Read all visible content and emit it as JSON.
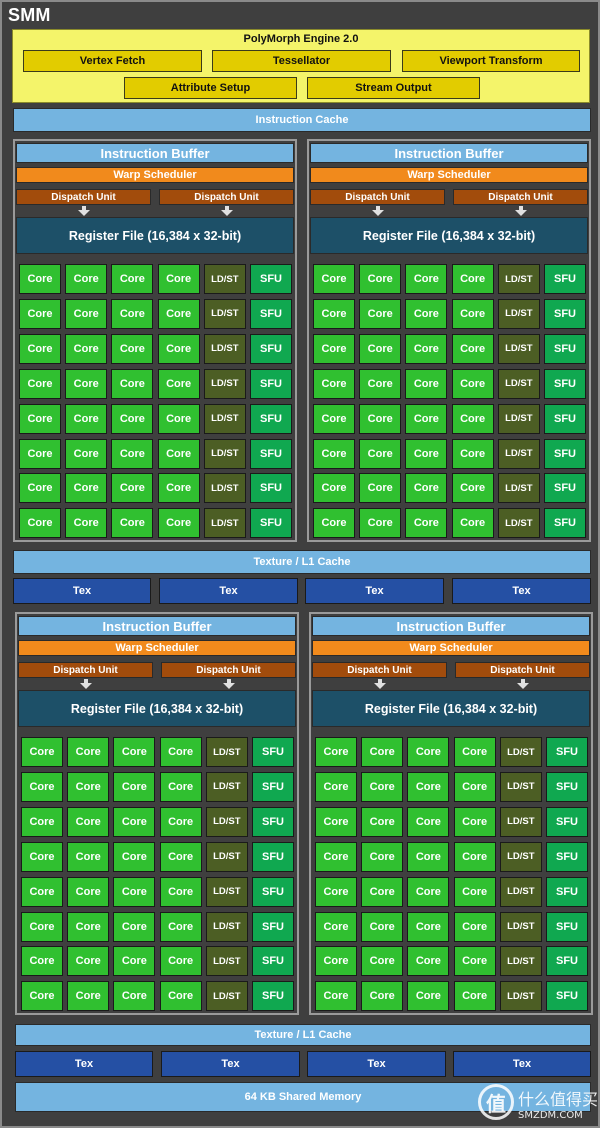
{
  "title": "SMM",
  "polymorph": {
    "title": "PolyMorph Engine 2.0",
    "row1": [
      "Vertex Fetch",
      "Tessellator",
      "Viewport Transform"
    ],
    "row2": [
      "Attribute Setup",
      "Stream Output"
    ]
  },
  "instruction_cache": "Instruction Cache",
  "processing_block": {
    "instruction_buffer": "Instruction Buffer",
    "warp_scheduler": "Warp Scheduler",
    "dispatch_units": [
      "Dispatch Unit",
      "Dispatch Unit"
    ],
    "register_file": "Register File (16,384 x 32-bit)",
    "row_units": [
      "Core",
      "Core",
      "Core",
      "Core",
      "LD/ST",
      "SFU"
    ],
    "rows": 8
  },
  "texture_l1_cache": "Texture / L1 Cache",
  "tex_units": [
    "Tex",
    "Tex",
    "Tex",
    "Tex"
  ],
  "shared_memory": "64 KB Shared Memory",
  "watermark": {
    "logo_glyph": "值",
    "chinese": "什么值得买",
    "english": "SMZDM.COM"
  },
  "colors": {
    "background": "#3f3f3f",
    "polymorph": "#f4f46a",
    "polymorph_item": "#e2cc00",
    "cache": "#74b4e0",
    "tex": "#2550a4",
    "warp_scheduler": "#f18a1c",
    "dispatch_unit": "#a24c0c",
    "register_file": "#1d5068",
    "core": "#30c030",
    "ldst": "#4c5e24",
    "sfu": "#10a850"
  }
}
